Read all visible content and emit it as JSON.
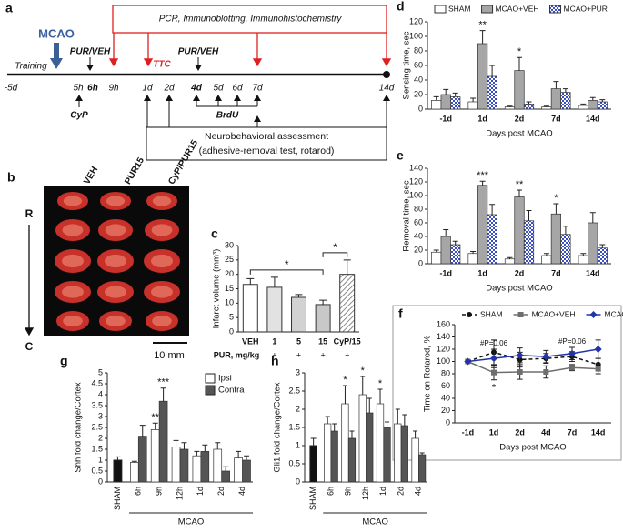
{
  "timeline": {
    "panel": "a",
    "event": "MCAO",
    "assays": "PCR, Immunoblotting, Immunohistochemistry",
    "training": "Training",
    "treatment_1": "PUR/VEH",
    "treatment_2": "PUR/VEH",
    "ttc": "TTC",
    "cyp": "CyP",
    "brdu": "BrdU",
    "behavior_title": "Neurobehavioral assessment",
    "behavior_tests": "(adhesive-removal test, rotarod)",
    "time_points": [
      "-5d",
      "5h",
      "6h",
      "9h",
      "1d",
      "2d",
      "4d",
      "5d",
      "6d",
      "7d",
      "14d"
    ]
  },
  "brain_images": {
    "panel": "b",
    "columns": [
      "VEH",
      "PUR15",
      "CyP/PUR15"
    ],
    "rostral": "R",
    "caudal": "C",
    "scale": "10 mm"
  },
  "chart_data": [
    {
      "panel": "c",
      "type": "bar",
      "ylabel": "Infarct volume (mm³)",
      "categories": [
        "VEH",
        "1",
        "5",
        "15",
        "CyP/15"
      ],
      "values": [
        16.5,
        15.5,
        12,
        9.5,
        20
      ],
      "errors": [
        2,
        3.5,
        1,
        1.5,
        5
      ],
      "colors": [
        "#ffffff",
        "#e2e2e2",
        "#d2d2d2",
        "#c8c8c8",
        "#ffffff"
      ],
      "hatched": [
        false,
        false,
        false,
        false,
        true
      ],
      "ylim": [
        0,
        30
      ],
      "yticks": [
        0,
        5,
        10,
        15,
        20,
        25,
        30
      ],
      "row_label": "PUR, mg/kg",
      "row_signs": [
        null,
        "+",
        "+",
        "+",
        "+"
      ],
      "annotations": [
        {
          "text": "*",
          "from": 0,
          "to": 3
        },
        {
          "text": "*",
          "from": 3,
          "to": 4
        }
      ]
    },
    {
      "panel": "d",
      "type": "bar",
      "ylabel": "Sensing time, sec",
      "xlabel": "Days post MCAO",
      "legend": "top",
      "categories": [
        "-1d",
        "1d",
        "2d",
        "7d",
        "14d"
      ],
      "series": [
        {
          "name": "SHAM",
          "color": "#ffffff",
          "values": [
            12,
            10,
            3,
            3,
            5
          ],
          "errors": [
            5,
            5,
            1,
            1,
            2
          ]
        },
        {
          "name": "MCAO+VEH",
          "color": "#a6a6a6",
          "values": [
            20,
            90,
            53,
            28,
            12
          ],
          "errors": [
            7,
            18,
            18,
            10,
            4
          ]
        },
        {
          "name": "MCAO+PUR",
          "color": "#3b4fc4",
          "pattern": "checker",
          "values": [
            17,
            45,
            7,
            23,
            10
          ],
          "errors": [
            5,
            15,
            3,
            5,
            3
          ]
        }
      ],
      "ylim": [
        0,
        120
      ],
      "yticks": [
        0,
        20,
        40,
        60,
        80,
        100,
        120
      ],
      "annotations": [
        {
          "text": "**",
          "category": 1,
          "series": 1
        },
        {
          "text": "*",
          "category": 2,
          "series": 1
        }
      ]
    },
    {
      "panel": "e",
      "type": "bar",
      "ylabel": "Removal time, sec",
      "xlabel": "Days post MCAO",
      "categories": [
        "-1d",
        "1d",
        "2d",
        "7d",
        "14d"
      ],
      "series": [
        {
          "name": "SHAM",
          "color": "#ffffff",
          "values": [
            17,
            15,
            7,
            12,
            12
          ],
          "errors": [
            3,
            3,
            2,
            3,
            3
          ]
        },
        {
          "name": "MCAO+VEH",
          "color": "#a6a6a6",
          "values": [
            40,
            115,
            98,
            73,
            60
          ],
          "errors": [
            10,
            6,
            10,
            15,
            15
          ]
        },
        {
          "name": "MCAO+PUR",
          "color": "#3b4fc4",
          "pattern": "checker",
          "values": [
            28,
            72,
            63,
            43,
            23
          ],
          "errors": [
            5,
            15,
            15,
            12,
            5
          ]
        }
      ],
      "ylim": [
        0,
        140
      ],
      "yticks": [
        0,
        20,
        40,
        60,
        80,
        100,
        120,
        140
      ],
      "annotations": [
        {
          "text": "***",
          "category": 1,
          "series": 1
        },
        {
          "text": "**",
          "category": 2,
          "series": 1
        },
        {
          "text": "*",
          "category": 3,
          "series": 1
        }
      ]
    },
    {
      "panel": "f",
      "type": "line",
      "ylabel": "Time on Rotarod, %",
      "xlabel": "Days post MCAO",
      "legend": "top",
      "categories": [
        "-1d",
        "1d",
        "2d",
        "4d",
        "7d",
        "14d"
      ],
      "series": [
        {
          "name": "SHAM",
          "color": "#111111",
          "marker": "circle",
          "dash": true,
          "values": [
            100,
            115,
            103,
            105,
            108,
            95
          ],
          "errors": [
            0,
            20,
            12,
            8,
            8,
            10
          ]
        },
        {
          "name": "MCAO+VEH",
          "color": "#6e6e6e",
          "marker": "square",
          "values": [
            100,
            82,
            83,
            83,
            90,
            88
          ],
          "errors": [
            0,
            12,
            12,
            10,
            5,
            8
          ]
        },
        {
          "name": "MCAO+PUR",
          "color": "#2233aa",
          "marker": "diamond",
          "values": [
            100,
            105,
            110,
            108,
            113,
            120
          ],
          "errors": [
            0,
            15,
            12,
            10,
            10,
            15
          ]
        }
      ],
      "ylim": [
        0,
        160
      ],
      "yticks": [
        0,
        20,
        40,
        60,
        80,
        100,
        120,
        140,
        160
      ],
      "annotations": [
        {
          "text": "#P=0.06",
          "category": 1,
          "series": 2
        },
        {
          "text": "#P=0.06",
          "category": 4,
          "series": 2
        },
        {
          "text": "*",
          "category": 1,
          "series": 1,
          "side": "below"
        }
      ]
    },
    {
      "panel": "g",
      "type": "bar",
      "ylabel": "Shh fold change/Cortex",
      "legend": "upper right",
      "rotate_categories": true,
      "categories": [
        "SHAM",
        "6h",
        "9h",
        "12h",
        "1d",
        "2d",
        "4d"
      ],
      "group_label": "MCAO",
      "group_from": 1,
      "sham": {
        "value": 1.0,
        "error": 0.15,
        "color": "#111111"
      },
      "series": [
        {
          "name": "Ipsi",
          "color": "#ffffff",
          "values": [
            null,
            0.9,
            2.4,
            1.6,
            1.2,
            1.5,
            1.1
          ],
          "errors": [
            null,
            0.05,
            0.3,
            0.3,
            0.2,
            0.3,
            0.3
          ]
        },
        {
          "name": "Contra",
          "color": "#555555",
          "values": [
            null,
            2.1,
            3.7,
            1.5,
            1.4,
            0.5,
            1.0
          ],
          "errors": [
            null,
            0.5,
            0.6,
            0.3,
            0.3,
            0.2,
            0.2
          ]
        }
      ],
      "ylim": [
        0,
        5
      ],
      "yticks": [
        0,
        0.5,
        1,
        1.5,
        2,
        2.5,
        3,
        3.5,
        4,
        4.5,
        5
      ],
      "annotations": [
        {
          "text": "**",
          "category": 2,
          "series": 0
        },
        {
          "text": "***",
          "category": 2,
          "series": 1
        }
      ]
    },
    {
      "panel": "h",
      "type": "bar",
      "ylabel": "Gli1 fold change/Cortex",
      "rotate_categories": true,
      "categories": [
        "SHAM",
        "6h",
        "9h",
        "12h",
        "1d",
        "2d",
        "4d"
      ],
      "group_label": "MCAO",
      "group_from": 1,
      "sham": {
        "value": 1.0,
        "error": 0.2,
        "color": "#111111"
      },
      "series": [
        {
          "name": "Ipsi",
          "color": "#ffffff",
          "values": [
            null,
            1.6,
            2.15,
            2.4,
            2.15,
            1.6,
            1.2
          ],
          "errors": [
            null,
            0.2,
            0.5,
            0.5,
            0.4,
            0.4,
            0.2
          ]
        },
        {
          "name": "Contra",
          "color": "#555555",
          "values": [
            null,
            1.4,
            1.2,
            1.9,
            1.5,
            1.55,
            0.75
          ],
          "errors": [
            null,
            0.2,
            0.2,
            0.4,
            0.15,
            0.3,
            0.05
          ]
        }
      ],
      "ylim": [
        0,
        3
      ],
      "yticks": [
        0,
        0.5,
        1,
        1.5,
        2,
        2.5,
        3
      ],
      "annotations": [
        {
          "text": "*",
          "category": 2,
          "series": 0
        },
        {
          "text": "*",
          "category": 3,
          "series": 0
        },
        {
          "text": "*",
          "category": 4,
          "series": 0
        }
      ]
    }
  ]
}
